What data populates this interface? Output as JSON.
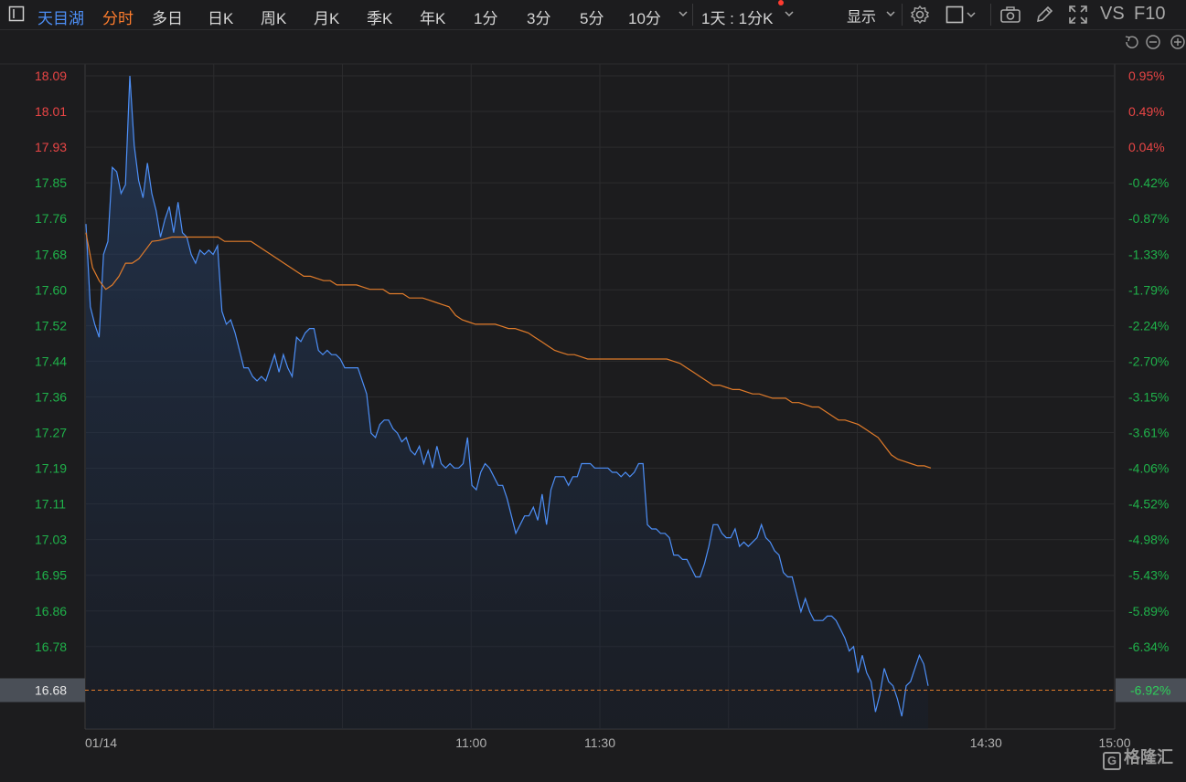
{
  "toolbar": {
    "stock_name": "天目湖",
    "tabs": [
      "分时",
      "多日",
      "日K",
      "周K",
      "月K",
      "季K",
      "年K",
      "1分",
      "3分",
      "5分",
      "10分"
    ],
    "active_tab": "分时",
    "period_selector": "1天 : 1分K",
    "display_label": "显示",
    "vs_label": "VS",
    "f10_label": "F10",
    "icons": [
      "sidebar-toggle-icon",
      "chevron-down-icon",
      "settings-icon",
      "checkbox-icon",
      "camera-icon",
      "pen-icon",
      "fullscreen-icon"
    ]
  },
  "chart_controls": [
    "undo-icon",
    "zoom-out-icon",
    "zoom-in-icon"
  ],
  "watermark": "格隆汇",
  "chart_data": {
    "type": "line",
    "date_label": "01/14",
    "x_ticks": [
      "11:00",
      "11:30",
      "14:30",
      "15:00"
    ],
    "y_left_ticks": [
      "18.09",
      "18.01",
      "17.93",
      "17.85",
      "17.76",
      "17.68",
      "17.60",
      "17.52",
      "17.44",
      "17.36",
      "17.27",
      "17.19",
      "17.11",
      "17.03",
      "16.95",
      "16.86",
      "16.78"
    ],
    "y_right_ticks": [
      "0.95%",
      "0.49%",
      "0.04%",
      "-0.42%",
      "-0.87%",
      "-1.33%",
      "-1.79%",
      "-2.24%",
      "-2.70%",
      "-3.15%",
      "-3.61%",
      "-4.06%",
      "-4.52%",
      "-4.98%",
      "-5.43%",
      "-5.89%",
      "-6.34%"
    ],
    "ylim": [
      16.68,
      18.09
    ],
    "current_price": "16.68",
    "current_pct": "-6.92%",
    "colors": {
      "price": "#4d8ff7",
      "avg": "#e07b2a",
      "up": "#e84545",
      "down": "#1fb24a",
      "grid": "#2b2b2d",
      "lastline": "#e07b2a"
    },
    "series": [
      {
        "values": [
          17.75,
          17.56,
          17.52,
          17.49,
          17.68,
          17.71,
          17.88,
          17.87,
          17.82,
          17.84,
          18.09,
          17.93,
          17.85,
          17.81,
          17.89,
          17.82,
          17.78,
          17.72,
          17.76,
          17.79,
          17.73,
          17.8,
          17.73,
          17.72,
          17.68,
          17.66,
          17.69,
          17.68,
          17.69,
          17.68,
          17.7,
          17.55,
          17.52,
          17.53,
          17.5,
          17.46,
          17.42,
          17.42,
          17.4,
          17.39,
          17.4,
          17.39,
          17.42,
          17.45,
          17.41,
          17.45,
          17.42,
          17.4,
          17.49,
          17.48,
          17.5,
          17.51,
          17.51,
          17.46,
          17.45,
          17.46,
          17.45,
          17.45,
          17.44,
          17.42,
          17.42,
          17.42,
          17.42,
          17.39,
          17.36,
          17.27,
          17.26,
          17.29,
          17.3,
          17.3,
          17.28,
          17.27,
          17.25,
          17.26,
          17.23,
          17.22,
          17.24,
          17.2,
          17.23,
          17.19,
          17.24,
          17.2,
          17.19,
          17.2,
          17.19,
          17.19,
          17.2,
          17.26,
          17.15,
          17.14,
          17.18,
          17.2,
          17.19,
          17.17,
          17.15,
          17.15,
          17.12,
          17.08,
          17.04,
          17.06,
          17.08,
          17.08,
          17.1,
          17.07,
          17.13,
          17.06,
          17.14,
          17.17,
          17.17,
          17.17,
          17.15,
          17.17,
          17.17,
          17.2,
          17.2,
          17.2,
          17.19,
          17.19,
          17.19,
          17.19,
          17.18,
          17.18,
          17.17,
          17.18,
          17.17,
          17.18,
          17.2,
          17.2,
          17.06,
          17.05,
          17.05,
          17.04,
          17.04,
          17.03,
          16.99,
          16.99,
          16.98,
          16.98,
          16.96,
          16.94,
          16.94,
          16.97,
          17.01,
          17.06,
          17.06,
          17.04,
          17.03,
          17.03,
          17.05,
          17.01,
          17.02,
          17.01,
          17.02,
          17.03,
          17.06,
          17.03,
          17.02,
          17.0,
          16.99,
          16.95,
          16.94,
          16.94,
          16.9,
          16.86,
          16.89,
          16.86,
          16.84,
          16.84,
          16.84,
          16.85,
          16.85,
          16.84,
          16.82,
          16.8,
          16.77,
          16.78,
          16.72,
          16.76,
          16.72,
          16.7,
          16.63,
          16.67,
          16.73,
          16.7,
          16.69,
          16.66,
          16.62,
          16.69,
          16.7,
          16.73,
          16.76,
          16.74,
          16.69
        ]
      },
      {
        "values": [
          17.73,
          17.65,
          17.62,
          17.6,
          17.61,
          17.63,
          17.66,
          17.66,
          17.67,
          17.69,
          17.71,
          17.712,
          17.716,
          17.72,
          17.72,
          17.72,
          17.72,
          17.72,
          17.72,
          17.72,
          17.72,
          17.71,
          17.71,
          17.71,
          17.71,
          17.71,
          17.7,
          17.69,
          17.68,
          17.67,
          17.66,
          17.65,
          17.64,
          17.63,
          17.63,
          17.625,
          17.62,
          17.62,
          17.61,
          17.61,
          17.61,
          17.61,
          17.605,
          17.6,
          17.6,
          17.6,
          17.59,
          17.59,
          17.59,
          17.58,
          17.58,
          17.58,
          17.575,
          17.57,
          17.565,
          17.56,
          17.54,
          17.53,
          17.525,
          17.52,
          17.52,
          17.52,
          17.52,
          17.515,
          17.51,
          17.51,
          17.505,
          17.5,
          17.49,
          17.48,
          17.47,
          17.46,
          17.455,
          17.45,
          17.45,
          17.445,
          17.44,
          17.44,
          17.44,
          17.44,
          17.44,
          17.44,
          17.44,
          17.44,
          17.44,
          17.44,
          17.44,
          17.44,
          17.44,
          17.435,
          17.43,
          17.42,
          17.41,
          17.4,
          17.39,
          17.38,
          17.38,
          17.375,
          17.37,
          17.37,
          17.365,
          17.36,
          17.36,
          17.355,
          17.35,
          17.35,
          17.35,
          17.34,
          17.34,
          17.335,
          17.33,
          17.33,
          17.32,
          17.31,
          17.3,
          17.3,
          17.295,
          17.29,
          17.28,
          17.27,
          17.26,
          17.24,
          17.22,
          17.21,
          17.205,
          17.2,
          17.195,
          17.195,
          17.19
        ]
      }
    ]
  }
}
